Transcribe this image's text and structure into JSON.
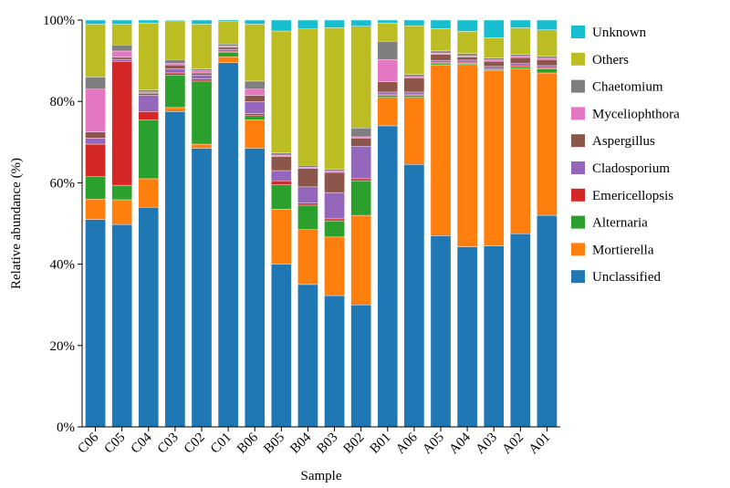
{
  "chart_data": {
    "type": "bar",
    "stacked": true,
    "normalized": true,
    "xlabel": "Sample",
    "ylabel": "Relative abundance (%)",
    "ylim": [
      0,
      100
    ],
    "yticks": [
      "0%",
      "20%",
      "40%",
      "60%",
      "80%",
      "100%"
    ],
    "grid": false,
    "legend_position": "right",
    "categories": [
      "C06",
      "C05",
      "C04",
      "C03",
      "C02",
      "C01",
      "B06",
      "B05",
      "B04",
      "B03",
      "B02",
      "B01",
      "A06",
      "A05",
      "A04",
      "A03",
      "A02",
      "A01"
    ],
    "series": [
      {
        "name": "Unclassified",
        "color": "#1f77b4",
        "values": [
          51.0,
          49.0,
          54.0,
          77.5,
          68.5,
          89.5,
          68.5,
          40.0,
          35.0,
          32.5,
          30.0,
          74.0,
          64.5,
          47.0,
          44.5,
          44.5,
          47.5,
          52.0
        ]
      },
      {
        "name": "Mortierella",
        "color": "#ff7f0e",
        "values": [
          5.0,
          6.0,
          7.0,
          1.0,
          1.0,
          1.5,
          7.0,
          13.5,
          13.5,
          14.5,
          22.0,
          7.0,
          16.5,
          42.0,
          45.0,
          43.0,
          40.5,
          35.0
        ]
      },
      {
        "name": "Alternaria",
        "color": "#2ca02c",
        "values": [
          5.5,
          3.5,
          14.5,
          8.0,
          15.5,
          1.0,
          1.0,
          6.0,
          6.0,
          4.0,
          8.5,
          0.5,
          0.5,
          0.3,
          0.3,
          0.3,
          0.5,
          1.0
        ]
      },
      {
        "name": "Emericellopsis",
        "color": "#d62728",
        "values": [
          8.0,
          30.0,
          2.0,
          0.5,
          0.5,
          0.3,
          0.5,
          1.0,
          0.5,
          0.5,
          0.5,
          0.3,
          0.3,
          0.3,
          0.3,
          0.3,
          0.3,
          0.3
        ]
      },
      {
        "name": "Cladosporium",
        "color": "#9467bd",
        "values": [
          1.5,
          0.5,
          4.0,
          1.0,
          1.0,
          0.5,
          3.0,
          2.5,
          4.0,
          6.5,
          8.0,
          0.5,
          0.5,
          0.5,
          0.5,
          0.5,
          0.5,
          0.5
        ]
      },
      {
        "name": "Aspergillus",
        "color": "#8c564b",
        "values": [
          1.5,
          0.5,
          0.5,
          1.0,
          0.5,
          0.5,
          1.5,
          3.5,
          4.5,
          5.0,
          2.0,
          2.5,
          3.5,
          1.5,
          0.8,
          1.3,
          1.5,
          1.5
        ]
      },
      {
        "name": "Myceliophthora",
        "color": "#e377c2",
        "values": [
          10.5,
          1.5,
          0.3,
          0.3,
          0.5,
          0.3,
          1.5,
          0.3,
          0.3,
          0.3,
          0.3,
          5.5,
          0.3,
          0.3,
          0.3,
          0.3,
          0.3,
          0.3
        ]
      },
      {
        "name": "Chaetomium",
        "color": "#7f7f7f",
        "values": [
          3.0,
          1.5,
          0.5,
          1.0,
          0.5,
          0.5,
          2.0,
          0.5,
          0.5,
          0.5,
          2.2,
          4.5,
          0.5,
          0.5,
          0.5,
          0.5,
          0.5,
          0.5
        ]
      },
      {
        "name": "Others",
        "color": "#bcbd22",
        "values": [
          13.0,
          5.0,
          16.5,
          9.5,
          11.0,
          5.5,
          14.0,
          30.0,
          33.5,
          35.0,
          25.0,
          4.5,
          12.0,
          5.5,
          5.5,
          5.0,
          6.5,
          6.5
        ]
      },
      {
        "name": "Unknown",
        "color": "#17becf",
        "values": [
          1.0,
          1.0,
          0.7,
          0.2,
          1.0,
          0.4,
          1.0,
          2.7,
          2.2,
          1.9,
          1.5,
          0.7,
          1.4,
          2.1,
          2.8,
          4.3,
          1.9,
          2.4
        ]
      }
    ]
  }
}
